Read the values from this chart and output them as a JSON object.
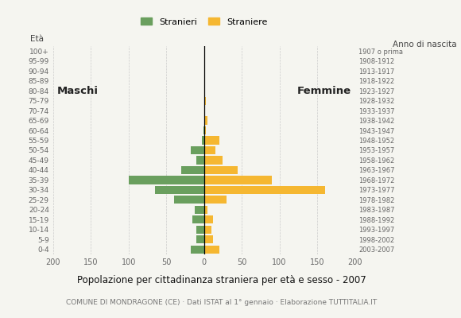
{
  "age_groups": [
    "0-4",
    "5-9",
    "10-14",
    "15-19",
    "20-24",
    "25-29",
    "30-34",
    "35-39",
    "40-44",
    "45-49",
    "50-54",
    "55-59",
    "60-64",
    "65-69",
    "70-74",
    "75-79",
    "80-84",
    "85-89",
    "90-94",
    "95-99",
    "100+"
  ],
  "birth_years": [
    "2003-2007",
    "1998-2002",
    "1993-1997",
    "1988-1992",
    "1983-1987",
    "1978-1982",
    "1973-1977",
    "1968-1972",
    "1963-1967",
    "1958-1962",
    "1953-1957",
    "1948-1952",
    "1943-1947",
    "1938-1942",
    "1933-1937",
    "1928-1932",
    "1923-1927",
    "1918-1922",
    "1913-1917",
    "1908-1912",
    "1907 o prima"
  ],
  "males": [
    18,
    10,
    10,
    15,
    12,
    40,
    65,
    100,
    30,
    10,
    18,
    3,
    1,
    0,
    0,
    0,
    0,
    0,
    0,
    0,
    0
  ],
  "females": [
    20,
    12,
    10,
    12,
    5,
    30,
    160,
    90,
    45,
    25,
    15,
    20,
    3,
    5,
    1,
    2,
    0,
    0,
    0,
    0,
    0
  ],
  "male_color": "#6a9f5e",
  "female_color": "#f5b731",
  "title": "Popolazione per cittadinanza straniera per età e sesso - 2007",
  "subtitle": "COMUNE DI MONDRAGONE (CE) · Dati ISTAT al 1° gennaio · Elaborazione TUTTITALIA.IT",
  "legend_male": "Stranieri",
  "legend_female": "Straniere",
  "label_maschi": "Maschi",
  "label_femmine": "Femmine",
  "label_eta": "Età",
  "label_anno": "Anno di nascita",
  "xlim": 200,
  "xticks": [
    -200,
    -150,
    -100,
    -50,
    0,
    50,
    100,
    150,
    200
  ],
  "xtick_labels": [
    "200",
    "150",
    "100",
    "50",
    "0",
    "50",
    "100",
    "150",
    "200"
  ],
  "background_color": "#f5f5f0",
  "grid_color": "#cccccc",
  "bar_height": 0.82
}
